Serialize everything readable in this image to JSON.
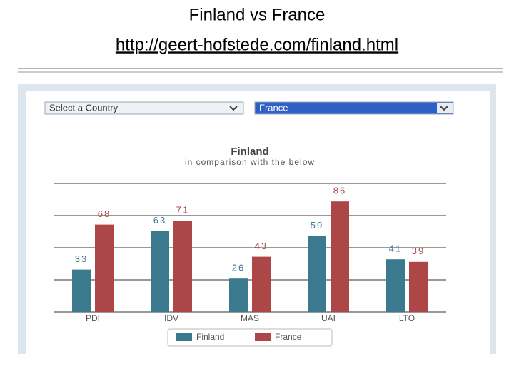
{
  "slide": {
    "title": "Finland vs France",
    "link": "http://geert-hofstede.com/finland.html"
  },
  "controls": {
    "country_select": "Select a Country",
    "comparison_select": "France"
  },
  "chart_data": {
    "type": "bar",
    "title": "Finland",
    "subtitle": "in comparison with the below",
    "categories": [
      "PDI",
      "IDV",
      "MAS",
      "UAI",
      "LTO"
    ],
    "series": [
      {
        "name": "Finland",
        "color": "#3b7a8e",
        "values": [
          33,
          63,
          26,
          59,
          41
        ]
      },
      {
        "name": "France",
        "color": "#ad4646",
        "values": [
          68,
          71,
          43,
          86,
          39
        ]
      }
    ],
    "ylim": [
      0,
      100
    ],
    "yticks": [
      0,
      25,
      50,
      75,
      100
    ],
    "grid": true,
    "legend": "bottom"
  }
}
